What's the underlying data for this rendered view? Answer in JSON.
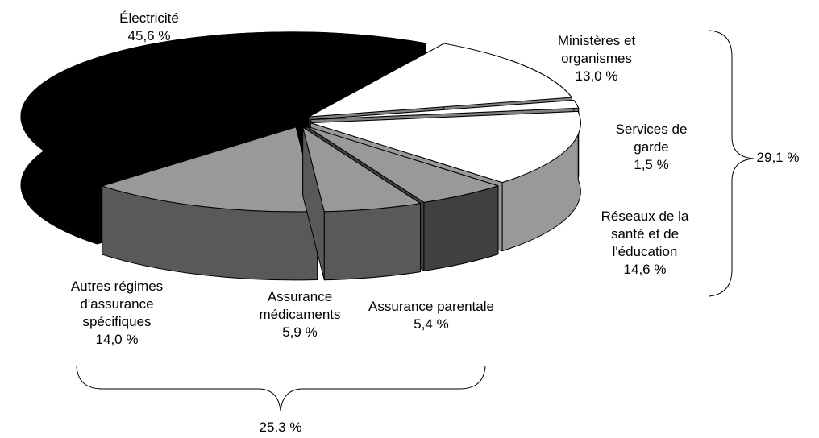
{
  "chart_data": {
    "type": "pie3d",
    "categories": [
      "Ministères et organismes",
      "Services de garde",
      "Réseaux de la santé et de l'éducation",
      "Assurance parentale",
      "Assurance médicaments",
      "Autres régimes d'assurance spécifiques",
      "Électricité"
    ],
    "values": [
      13.0,
      1.5,
      14.6,
      5.4,
      5.9,
      14.0,
      45.6
    ],
    "value_labels": [
      "13,0 %",
      "1,5 %",
      "14,6 %",
      "5,4 %",
      "5,9 %",
      "14,0 %",
      "45,6 %"
    ],
    "colors": [
      "#ffffff",
      "#ffffff",
      "#ffffff",
      "#999999",
      "#999999",
      "#999999",
      "#000000"
    ],
    "side_colors": [
      "#808080",
      "#808080",
      "#999999",
      "#404040",
      "#595959",
      "#595959",
      "#000000"
    ],
    "annotations": [
      {
        "text": "29,1 %"
      },
      {
        "text": "25.3 %"
      }
    ]
  }
}
